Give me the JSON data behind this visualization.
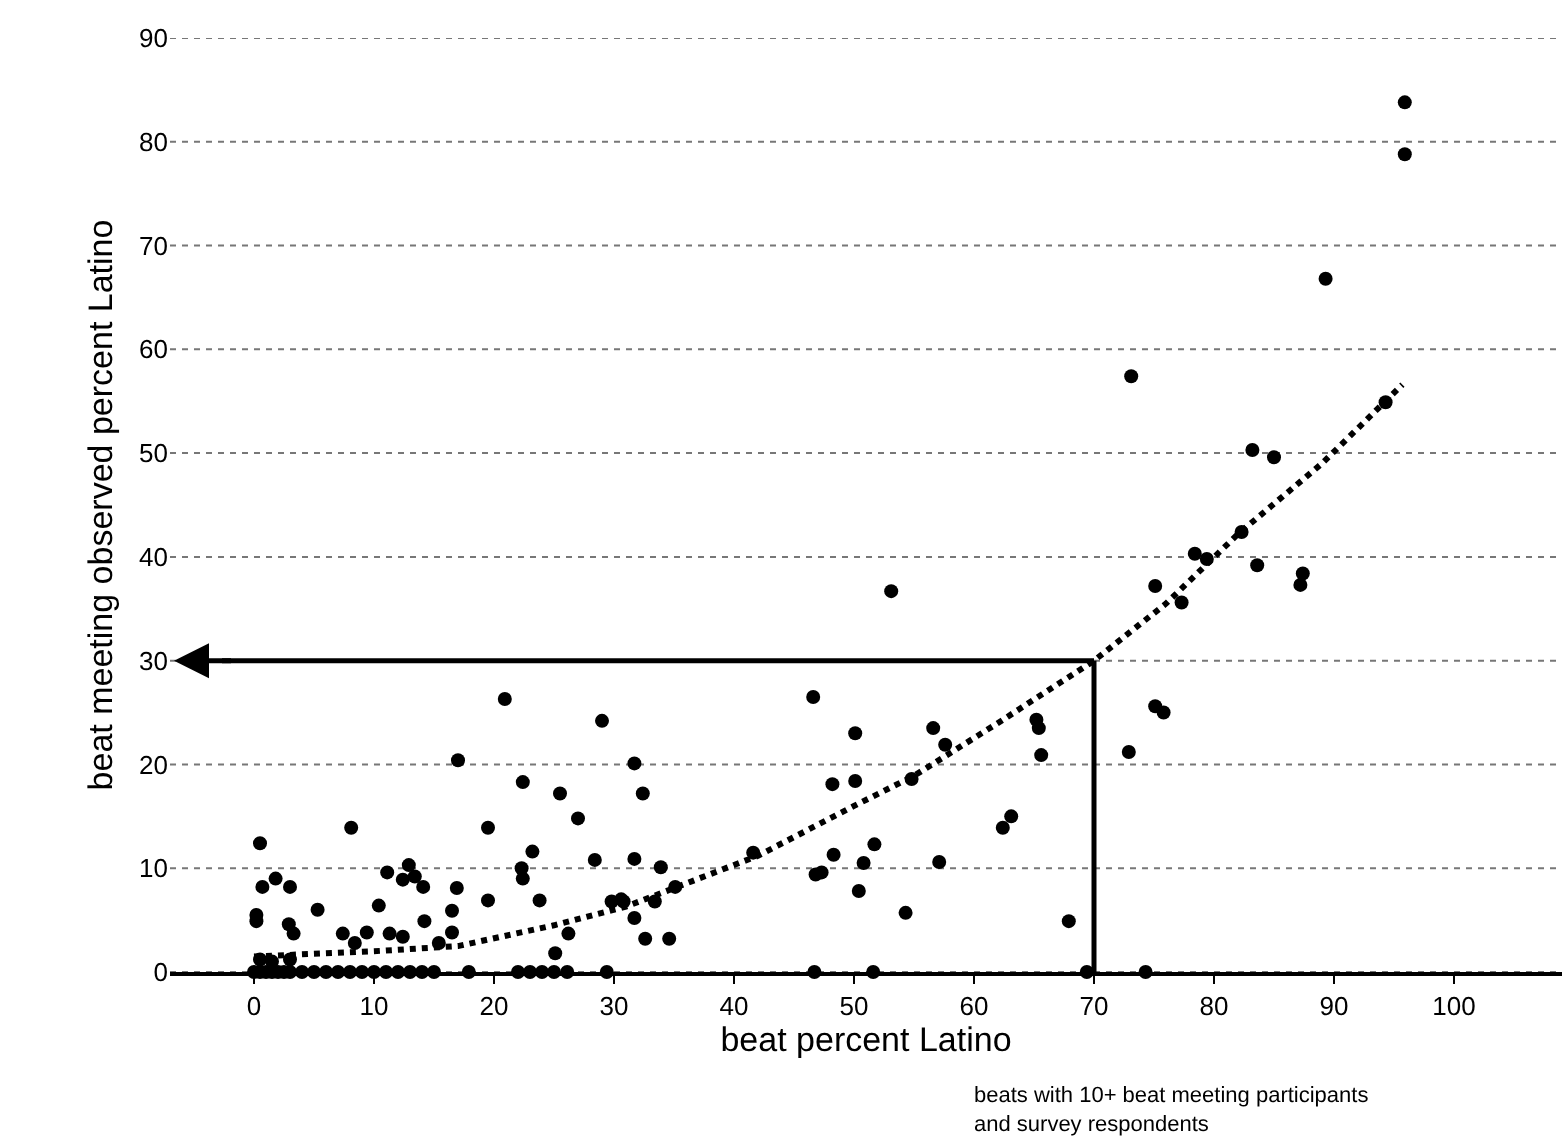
{
  "chart_data": {
    "type": "scatter",
    "xlabel": "beat percent Latino",
    "ylabel": "beat meeting observed percent Latino",
    "annotations": [
      "beats with 10+ beat meeting participants\nand survey respondents"
    ],
    "xlim": [
      -7,
      109
    ],
    "ylim": [
      0,
      90
    ],
    "ref_lines": [
      {
        "axis": "x",
        "value": 70,
        "color": "#000000"
      },
      {
        "axis": "y",
        "value": 30,
        "color": "#000000"
      }
    ],
    "xticks": [
      0,
      10,
      20,
      30,
      40,
      50,
      60,
      70,
      80,
      90,
      100
    ],
    "yticks": [
      0,
      10,
      20,
      30,
      40,
      50,
      60,
      70,
      80,
      90
    ],
    "grid": "y",
    "series": [
      {
        "marker": "circle",
        "color": "#000000",
        "x": [
          0.5,
          0.7,
          1.8,
          3.0,
          0.2,
          0.2,
          2.9,
          3.3,
          5.3,
          8.1,
          7.4,
          8.4,
          9.4,
          10.4,
          11.1,
          11.3,
          12.4,
          12.9,
          12.4,
          13.4,
          14.1,
          14.2,
          15.4,
          16.5,
          16.5,
          16.9,
          17.0,
          17.9,
          19.5,
          19.5,
          20.9,
          22.4,
          23.2,
          22.3,
          22.4,
          23.8,
          25.5,
          27.0,
          28.4,
          29.0,
          26.2,
          25.1,
          26.1,
          29.4,
          30.8,
          0.5,
          1.5,
          3.0,
          0,
          0.5,
          1,
          1.5,
          2,
          2.5,
          3,
          4,
          5,
          6,
          7,
          8,
          9,
          10,
          11,
          12,
          13,
          14,
          15,
          22,
          23,
          24,
          25,
          29.8,
          30.6,
          31.7,
          32.4,
          31.7,
          31.7,
          32.6,
          33.4,
          33.9,
          34.6,
          35.1,
          41.6,
          46.6,
          46.8,
          47.3,
          46.7,
          48.2,
          48.3,
          50.1,
          50.1,
          50.8,
          50.4,
          51.6,
          51.7,
          53.1,
          54.3,
          54.8,
          56.6,
          57.6,
          57.1,
          62.4,
          63.1,
          65.2,
          65.4,
          65.6,
          67.9,
          69.4,
          95.9,
          95.9,
          89.3,
          73.1,
          83.2,
          85.0,
          94.3,
          82.3,
          78.4,
          79.4,
          83.6,
          87.4,
          87.2,
          75.1,
          77.3,
          75.1,
          75.8,
          72.9,
          74.3
        ],
        "values": [
          12.4,
          8.2,
          9.0,
          8.2,
          5.5,
          4.9,
          4.6,
          3.7,
          6.0,
          13.9,
          3.7,
          2.8,
          3.8,
          6.4,
          9.6,
          3.7,
          3.4,
          10.3,
          8.9,
          9.2,
          8.2,
          4.9,
          2.8,
          3.8,
          5.9,
          8.1,
          20.4,
          0,
          13.9,
          6.9,
          26.3,
          18.3,
          11.6,
          10.0,
          9.0,
          6.9,
          17.2,
          14.8,
          10.8,
          24.2,
          3.7,
          1.8,
          0,
          0,
          6.8,
          1.2,
          1.0,
          1.2,
          0,
          0,
          0,
          0,
          0,
          0,
          0,
          0,
          0,
          0,
          0,
          0,
          0,
          0,
          0,
          0,
          0,
          0,
          0,
          0,
          0,
          0,
          0,
          6.8,
          7.0,
          20.1,
          17.2,
          10.9,
          5.2,
          3.2,
          6.8,
          10.1,
          3.2,
          8.2,
          11.5,
          26.5,
          9.4,
          9.6,
          0,
          18.1,
          11.3,
          23.0,
          18.4,
          10.5,
          7.8,
          0,
          12.3,
          36.7,
          5.7,
          18.6,
          23.5,
          21.9,
          10.6,
          13.9,
          15.0,
          24.3,
          23.5,
          20.9,
          4.9,
          0,
          83.8,
          78.8,
          66.8,
          57.4,
          50.3,
          49.6,
          54.9,
          42.4,
          40.3,
          39.8,
          39.2,
          38.4,
          37.3,
          37.2,
          35.6,
          25.6,
          25.0,
          21.2,
          0
        ]
      },
      {
        "type": "line",
        "line_style": "dotted",
        "marker": "none",
        "color": "#000000",
        "x": [
          0,
          10,
          17,
          25,
          31,
          42,
          50,
          55,
          62,
          70,
          76,
          82,
          89,
          95.7
        ],
        "values": [
          1.5,
          2,
          2.5,
          4.5,
          6.3,
          11.2,
          16,
          18.9,
          24,
          30,
          35.5,
          42.2,
          49,
          56.6
        ]
      }
    ]
  }
}
